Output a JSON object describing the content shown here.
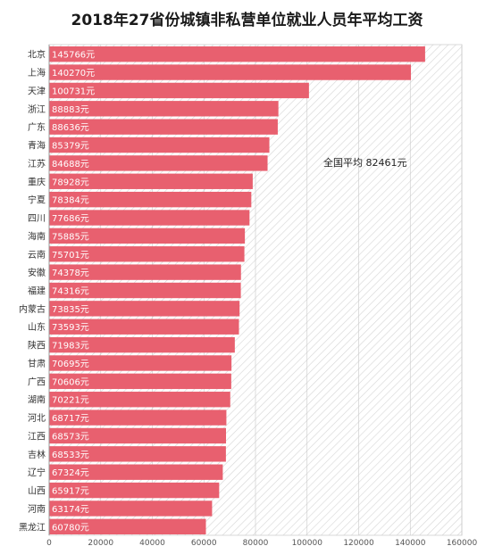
{
  "chart_data": {
    "type": "bar",
    "orientation": "horizontal",
    "title": "2018年27省份城镇非私营单位就业人员年平均工资",
    "categories": [
      "北京",
      "上海",
      "天津",
      "浙江",
      "广东",
      "青海",
      "江苏",
      "重庆",
      "宁夏",
      "四川",
      "海南",
      "云南",
      "安徽",
      "福建",
      "内蒙古",
      "山东",
      "陕西",
      "甘肃",
      "广西",
      "湖南",
      "河北",
      "江西",
      "吉林",
      "辽宁",
      "山西",
      "河南",
      "黑龙江"
    ],
    "values": [
      145766,
      140270,
      100731,
      88883,
      88636,
      85379,
      84688,
      78928,
      78384,
      77686,
      75885,
      75701,
      74378,
      74316,
      73835,
      73593,
      71983,
      70695,
      70606,
      70221,
      68717,
      68573,
      68533,
      67324,
      65917,
      63174,
      60780
    ],
    "value_labels": [
      "145766元",
      "140270元",
      "100731元",
      "88883元",
      "88636元",
      "85379元",
      "84688元",
      "78928元",
      "78384元",
      "77686元",
      "75885元",
      "75701元",
      "74378元",
      "74316元",
      "73835元",
      "73593元",
      "71983元",
      "70695元",
      "70606元",
      "70221元",
      "68717元",
      "68573元",
      "68533元",
      "67324元",
      "65917元",
      "63174元",
      "60780元"
    ],
    "x_ticks": [
      0,
      20000,
      40000,
      60000,
      80000,
      100000,
      120000,
      140000,
      160000
    ],
    "xlim": [
      0,
      160000
    ],
    "annotation": "全国平均 82461元",
    "annotation_value": 82461,
    "bar_color": "#e8606f",
    "grid": true
  }
}
